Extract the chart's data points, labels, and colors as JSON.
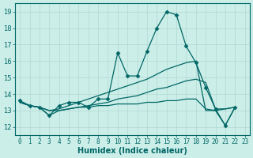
{
  "xlabel": "Humidex (Indice chaleur)",
  "ylabel": "",
  "bg_color": "#cceee8",
  "grid_color": "#b0d8d0",
  "line_color": "#006666",
  "xlim": [
    -0.5,
    23.5
  ],
  "ylim": [
    11.5,
    19.5
  ],
  "yticks": [
    12,
    13,
    14,
    15,
    16,
    17,
    18,
    19
  ],
  "xticks": [
    0,
    1,
    2,
    3,
    4,
    5,
    6,
    7,
    8,
    9,
    10,
    11,
    12,
    13,
    14,
    15,
    16,
    17,
    18,
    19,
    20,
    21,
    22,
    23
  ],
  "lines": [
    {
      "x": [
        0,
        1,
        2,
        3,
        4,
        5,
        6,
        7,
        8,
        9,
        10,
        11,
        12,
        13,
        14,
        15,
        16,
        17,
        18,
        19,
        20,
        21,
        22
      ],
      "y": [
        13.6,
        13.3,
        13.2,
        12.7,
        13.3,
        13.5,
        13.5,
        13.2,
        13.7,
        13.7,
        16.5,
        15.1,
        15.1,
        16.6,
        18.0,
        19.0,
        18.8,
        16.9,
        15.9,
        14.4,
        13.1,
        12.1,
        13.2
      ],
      "has_markers": true
    },
    {
      "x": [
        0,
        1,
        2,
        3,
        4,
        5,
        6,
        7,
        8,
        9,
        10,
        11,
        12,
        13,
        14,
        15,
        16,
        17,
        18,
        19,
        20,
        21,
        22
      ],
      "y": [
        13.5,
        13.3,
        13.2,
        13.0,
        13.1,
        13.3,
        13.5,
        13.7,
        13.9,
        14.1,
        14.3,
        14.5,
        14.7,
        14.9,
        15.2,
        15.5,
        15.7,
        15.9,
        16.0,
        13.0,
        13.0,
        13.1,
        13.2
      ],
      "has_markers": false
    },
    {
      "x": [
        0,
        1,
        2,
        3,
        4,
        5,
        6,
        7,
        8,
        9,
        10,
        11,
        12,
        13,
        14,
        15,
        16,
        17,
        18,
        19,
        20,
        21,
        22
      ],
      "y": [
        13.5,
        13.3,
        13.2,
        13.0,
        13.0,
        13.1,
        13.2,
        13.3,
        13.4,
        13.5,
        13.7,
        13.8,
        13.9,
        14.1,
        14.3,
        14.4,
        14.6,
        14.8,
        14.9,
        14.7,
        13.1,
        13.1,
        13.2
      ],
      "has_markers": false
    },
    {
      "x": [
        0,
        1,
        2,
        3,
        4,
        5,
        6,
        7,
        8,
        9,
        10,
        11,
        12,
        13,
        14,
        15,
        16,
        17,
        18,
        19,
        20,
        21,
        22
      ],
      "y": [
        13.5,
        13.3,
        13.2,
        12.7,
        13.0,
        13.1,
        13.2,
        13.2,
        13.3,
        13.3,
        13.4,
        13.4,
        13.4,
        13.5,
        13.5,
        13.6,
        13.6,
        13.7,
        13.7,
        13.1,
        13.0,
        12.1,
        13.2
      ],
      "has_markers": false
    }
  ],
  "marker_style": "D",
  "marker_size": 2.5,
  "linewidth": 0.9
}
